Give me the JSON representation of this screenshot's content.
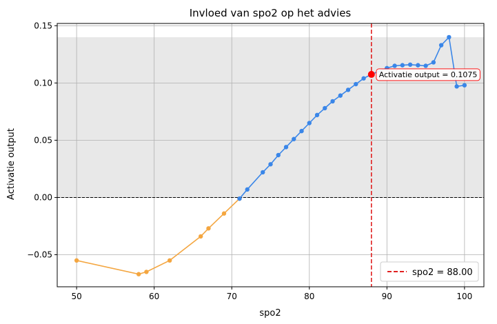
{
  "chart_data": {
    "type": "line",
    "title": "Invloed van spo2 op het advies",
    "xlabel": "spo2",
    "ylabel": "Activatie output",
    "xlim": [
      47.5,
      102.5
    ],
    "ylim": [
      -0.078,
      0.152
    ],
    "x_ticks": [
      50,
      60,
      70,
      80,
      90,
      100
    ],
    "x_tick_labels": [
      "50",
      "60",
      "70",
      "80",
      "90",
      "100"
    ],
    "y_ticks": [
      -0.05,
      0.0,
      0.05,
      0.1,
      0.15
    ],
    "y_tick_labels": [
      "−0.05",
      "0.00",
      "0.05",
      "0.10",
      "0.15"
    ],
    "grid": true,
    "shaded_band": {
      "y_from": 0.0,
      "y_to": 0.14,
      "color": "#e8e8e8"
    },
    "zero_line": {
      "y": 0.0,
      "style": "dashed",
      "color": "#000000"
    },
    "series": [
      {
        "color": "#f4a640",
        "points": [
          [
            50,
            -0.055
          ],
          [
            58,
            -0.067
          ],
          [
            59,
            -0.065
          ],
          [
            62,
            -0.055
          ],
          [
            66,
            -0.034
          ],
          [
            67,
            -0.027
          ],
          [
            69,
            -0.014
          ],
          [
            71,
            -0.001
          ]
        ]
      },
      {
        "color": "#3a86e8",
        "points": [
          [
            71,
            -0.001
          ],
          [
            72,
            0.007
          ],
          [
            74,
            0.022
          ],
          [
            75,
            0.029
          ],
          [
            76,
            0.037
          ],
          [
            77,
            0.044
          ],
          [
            78,
            0.051
          ],
          [
            79,
            0.058
          ],
          [
            80,
            0.065
          ],
          [
            81,
            0.072
          ],
          [
            82,
            0.078
          ],
          [
            83,
            0.084
          ],
          [
            84,
            0.089
          ],
          [
            85,
            0.094
          ],
          [
            86,
            0.099
          ],
          [
            87,
            0.104
          ],
          [
            88,
            0.1075
          ],
          [
            90,
            0.113
          ],
          [
            91,
            0.115
          ],
          [
            92,
            0.1155
          ],
          [
            93,
            0.116
          ],
          [
            94,
            0.1155
          ],
          [
            95,
            0.115
          ],
          [
            96,
            0.118
          ],
          [
            97,
            0.133
          ],
          [
            98,
            0.14
          ],
          [
            99,
            0.097
          ],
          [
            100,
            0.098
          ]
        ]
      }
    ],
    "vertical_line": {
      "x": 88.0,
      "color": "#e02020",
      "style": "dashed"
    },
    "highlight_point": {
      "x": 88,
      "y": 0.1075,
      "color": "#ff0000"
    },
    "annotation": {
      "text": "Activatie output = 0.1075",
      "color": "#ff0000"
    },
    "legend": {
      "position": "lower-right",
      "entries": [
        {
          "label": "spo2 = 88.00",
          "color": "#e02020",
          "style": "dashed"
        }
      ]
    }
  }
}
